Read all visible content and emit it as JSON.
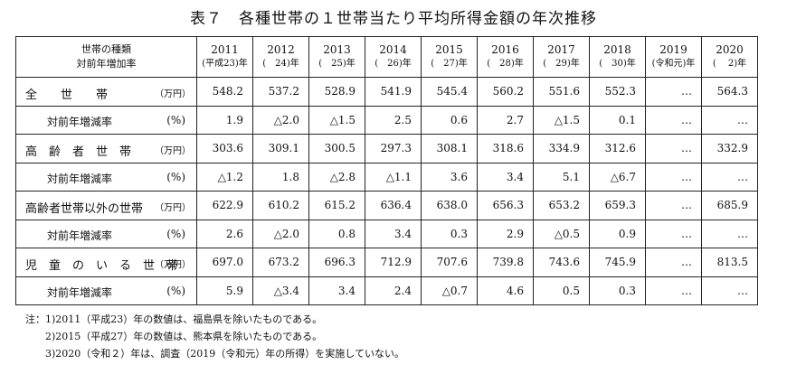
{
  "title": "表７　各種世帯の１世帯当たり平均所得金額の年次推移",
  "header": {
    "label_line1": "世帯の種類",
    "label_line2": "対前年増加率",
    "years": [
      {
        "year": "2011",
        "sub": "(平成23)年"
      },
      {
        "year": "2012",
        "sub": "(　24)年"
      },
      {
        "year": "2013",
        "sub": "(　25)年"
      },
      {
        "year": "2014",
        "sub": "(　26)年"
      },
      {
        "year": "2015",
        "sub": "(　27)年"
      },
      {
        "year": "2016",
        "sub": "(　28)年"
      },
      {
        "year": "2017",
        "sub": "(　29)年"
      },
      {
        "year": "2018",
        "sub": "(　30)年"
      },
      {
        "year": "2019",
        "sub": "(令和元)年"
      },
      {
        "year": "2020",
        "sub": "(　 2)年"
      }
    ]
  },
  "rows": [
    {
      "label": "全　　世　　帯",
      "unit": "（万円）",
      "rate": false,
      "values": [
        "548.2",
        "537.2",
        "528.9",
        "541.9",
        "545.4",
        "560.2",
        "551.6",
        "552.3",
        "…",
        "564.3"
      ]
    },
    {
      "label": "対前年増減率",
      "unit": "(%)",
      "rate": true,
      "values": [
        "1.9",
        "△2.0",
        "△1.5",
        "2.5",
        "0.6",
        "2.7",
        "△1.5",
        "0.1",
        "…",
        "…"
      ]
    },
    {
      "label": "高　齢　者　世　帯",
      "unit": "（万円）",
      "rate": false,
      "values": [
        "303.6",
        "309.1",
        "300.5",
        "297.3",
        "308.1",
        "318.6",
        "334.9",
        "312.6",
        "…",
        "332.9"
      ]
    },
    {
      "label": "対前年増減率",
      "unit": "(%)",
      "rate": true,
      "values": [
        "△1.2",
        "1.8",
        "△2.8",
        "△1.1",
        "3.6",
        "3.4",
        "5.1",
        "△6.7",
        "…",
        "…"
      ]
    },
    {
      "label": "高齢者世帯以外の世帯",
      "unit": "（万円）",
      "rate": false,
      "values": [
        "622.9",
        "610.2",
        "615.2",
        "636.4",
        "638.0",
        "656.3",
        "653.2",
        "659.3",
        "…",
        "685.9"
      ]
    },
    {
      "label": "対前年増減率",
      "unit": "(%)",
      "rate": true,
      "values": [
        "2.6",
        "△2.0",
        "0.8",
        "3.4",
        "0.3",
        "2.9",
        "△0.5",
        "0.9",
        "…",
        "…"
      ]
    },
    {
      "label": "児　童　の　い　る　世　帯",
      "unit": "（万円）",
      "rate": false,
      "values": [
        "697.0",
        "673.2",
        "696.3",
        "712.9",
        "707.6",
        "739.8",
        "743.6",
        "745.9",
        "…",
        "813.5"
      ]
    },
    {
      "label": "対前年増減率",
      "unit": "(%)",
      "rate": true,
      "values": [
        "5.9",
        "△3.4",
        "3.4",
        "2.4",
        "△0.7",
        "4.6",
        "0.5",
        "0.3",
        "…",
        "…"
      ]
    }
  ],
  "notes": [
    "注：1)2011（平成23）年の数値は、福島県を除いたものである。",
    "2)2015（平成27）年の数値は、熊本県を除いたものである。",
    "3)2020（令和２）年は、調査（2019（令和元）年の所得）を実施していない。"
  ]
}
